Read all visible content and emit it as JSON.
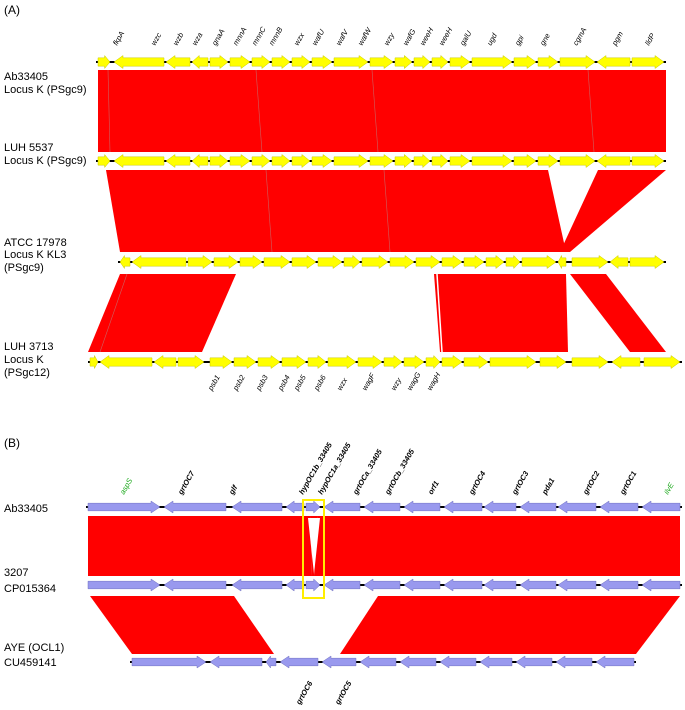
{
  "panel_a": {
    "label": "(A)",
    "tracks": [
      {
        "id": "ab33405",
        "lines": [
          "Ab33405",
          "Locus K (PSgc9)"
        ]
      },
      {
        "id": "luh5537",
        "lines": [
          "LUH 5537",
          "Locus K (PSgc9)"
        ]
      },
      {
        "id": "atcc17978",
        "lines": [
          "ATCC 17978",
          "Locus K KL3",
          "(PSgc9)"
        ]
      },
      {
        "id": "luh3713",
        "lines": [
          "LUH 3713",
          "Locus K",
          "(PSgc12)"
        ]
      }
    ],
    "top_genes": [
      "fkpA",
      "wzc",
      "wzb",
      "wza",
      "gnaA",
      "mnnA",
      "mnnC",
      "mnnB",
      "wzx",
      "wafU",
      "wafV",
      "wafW",
      "wzy",
      "wafG",
      "weeH",
      "weeH",
      "galU",
      "ugd",
      "gpi",
      "gne",
      "cgmA",
      "pgm",
      "lldP"
    ],
    "bottom_genes": [
      "psb1",
      "psb2",
      "psb3",
      "psb4",
      "psb5",
      "psb6",
      "wzx",
      "wagF",
      "wzy",
      "wagG",
      "wagH"
    ]
  },
  "panel_b": {
    "label": "(B)",
    "tracks": [
      {
        "id": "ab33405",
        "lines": [
          "Ab33405"
        ]
      },
      {
        "id": "3207",
        "lines": [
          "3207",
          "CP015364"
        ]
      },
      {
        "id": "aye",
        "lines": [
          "AYE (OCL1)",
          "CU459141"
        ]
      }
    ],
    "flank_genes": [
      "aspS",
      "ilvE"
    ],
    "top_genes": [
      "grtOC7",
      "glf",
      "hypOC1b_33405",
      "hypOC1a_33405",
      "grtOCa_33405",
      "grtOCb_33405",
      "orf1",
      "grtOC4",
      "grtOC3",
      "pda1",
      "grtOC2",
      "grtOC1"
    ],
    "bottom_genes": [
      "grtOC6",
      "grtOC5"
    ]
  },
  "colors": {
    "homology": "#ff0000",
    "gene_a": "#ffff00",
    "gene_b": "#9999ee",
    "flank_gene_text": "#1aa81a",
    "highlight_box": "#ffee00",
    "backbone": "#000000"
  }
}
